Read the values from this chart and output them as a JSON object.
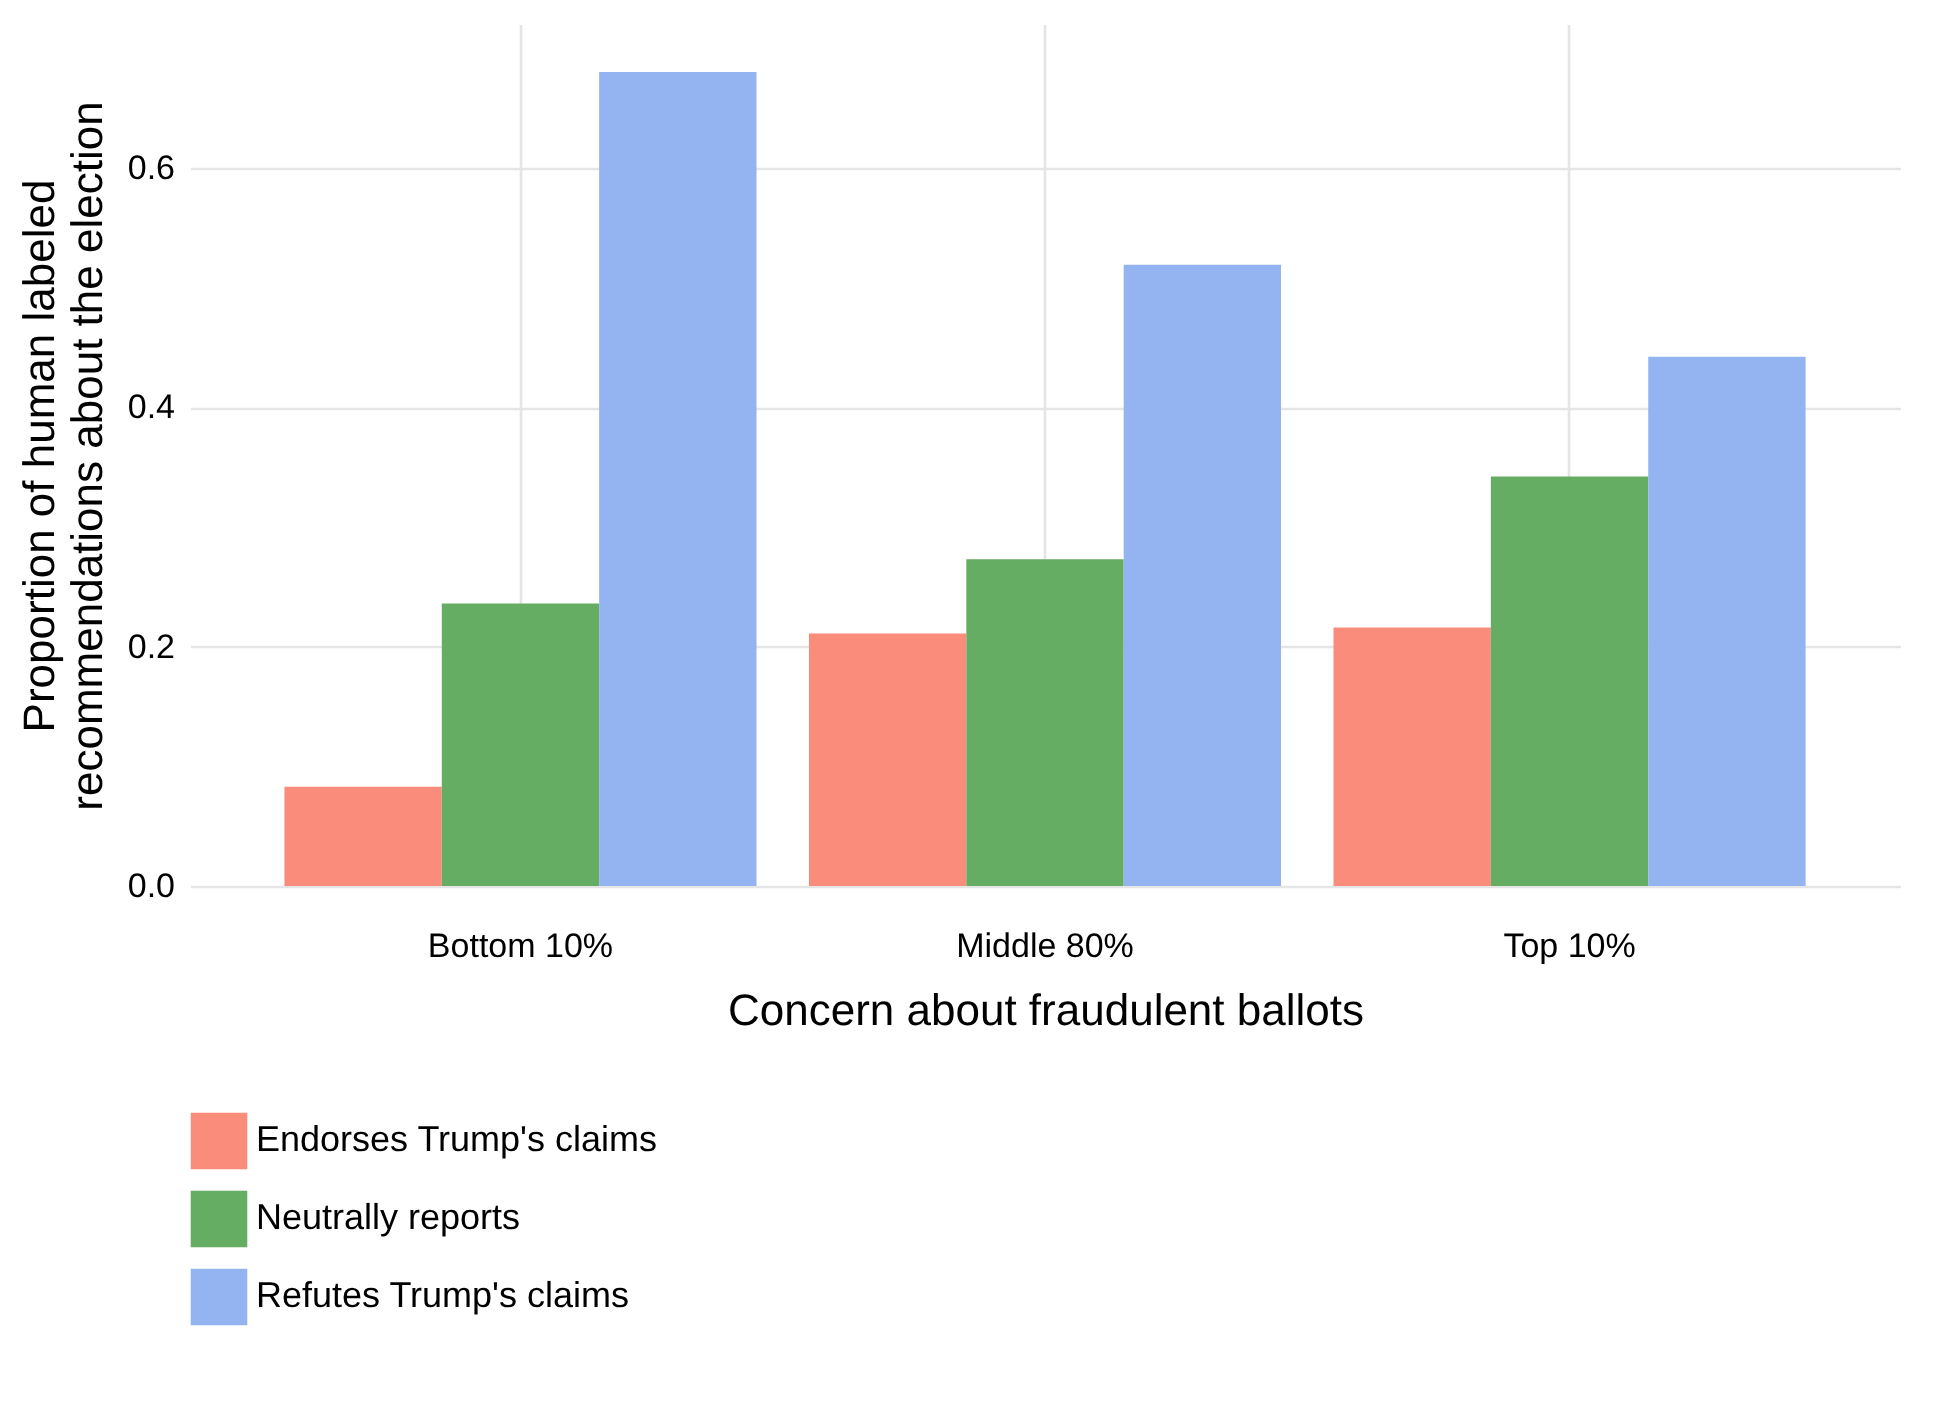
{
  "chart_data": {
    "type": "bar",
    "xlabel": "Concern about fraudulent ballots",
    "ylabel": "Proportion of human labeled\nrecommendations about the election",
    "categories": [
      "Bottom 10%",
      "Middle 80%",
      "Top 10%"
    ],
    "series": [
      {
        "name": "Endorses Trump's claims",
        "color": "#fa8c7b",
        "values": [
          0.083,
          0.211,
          0.216
        ]
      },
      {
        "name": "Neutrally reports",
        "color": "#65ad62",
        "values": [
          0.236,
          0.273,
          0.342
        ]
      },
      {
        "name": "Refutes Trump's claims",
        "color": "#93b4f0",
        "values": [
          0.68,
          0.519,
          0.442
        ]
      }
    ],
    "ylim": [
      0,
      0.72
    ],
    "yticks": [
      {
        "value": 0,
        "label": "0.0"
      },
      {
        "value": 0.2,
        "label": "0.2"
      },
      {
        "value": 0.4,
        "label": "0.4"
      },
      {
        "value": 0.6,
        "label": "0.6"
      }
    ],
    "grid": true,
    "legend": "bottom left"
  }
}
